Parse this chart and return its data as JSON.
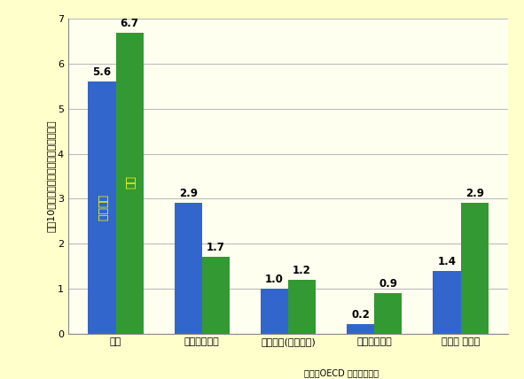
{
  "categories": [
    "合計",
    "自動車乗車中",
    "自動二輪(原付含む)",
    "自転車利用中",
    "歩行中 その他"
  ],
  "uk_values": [
    5.6,
    2.9,
    1.0,
    0.2,
    1.4
  ],
  "japan_values": [
    6.7,
    1.7,
    1.2,
    0.9,
    2.9
  ],
  "uk_color": "#3366cc",
  "japan_color": "#339933",
  "uk_label": "イギリス",
  "japan_label": "日本",
  "ylabel_chars": [
    "人",
    "口",
    "1",
    "0",
    "万",
    "人",
    "あ",
    "た",
    "り",
    "交",
    "通",
    "事",
    "故",
    "死",
    "者",
    "数",
    "（",
    "人",
    "）"
  ],
  "ylim": [
    0,
    7
  ],
  "yticks": [
    0,
    1,
    2,
    3,
    4,
    5,
    6,
    7
  ],
  "background_color": "#ffffcc",
  "plot_bg_color": "#fffff0",
  "grid_color": "#bbbbbb",
  "source_text": "出典：OECD 資料より作成",
  "bar_width": 0.32,
  "label_fontsize": 8.5,
  "ylabel_fontsize": 8,
  "tick_fontsize": 8,
  "legend_label_fontsize": 9
}
